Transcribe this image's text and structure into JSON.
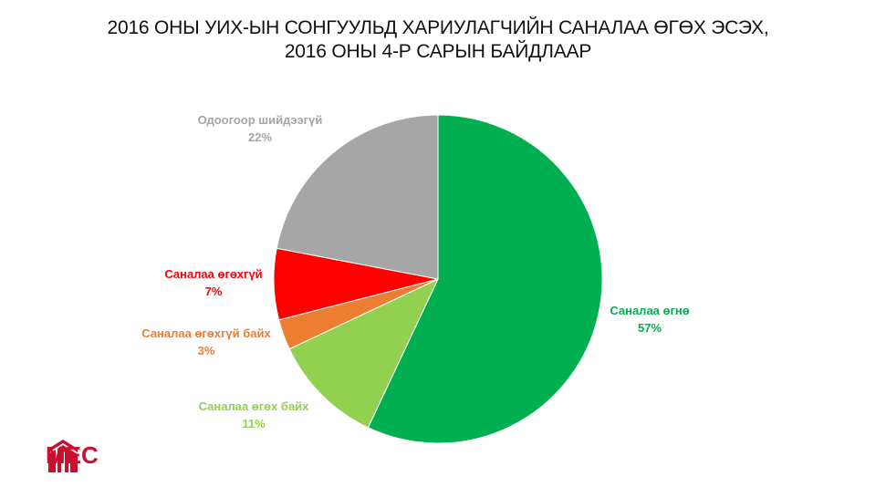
{
  "title_line1": "2016 ОНЫ УИХ-ЫН СОНГУУЛЬД ХАРИУЛАГЧИЙН САНАЛАА ӨГӨХ ЭСЭХ,",
  "title_line2": "2016 ОНЫ 4-Р САРЫН БАЙДЛААР",
  "logo_text": "MEC",
  "chart_data": {
    "type": "pie",
    "title": "2016 ОНЫ УИХ-ЫН СОНГУУЛЬД ХАРИУЛАГЧИЙН САНАЛАА ӨГӨХ ЭСЭХ, 2016 ОНЫ 4-Р САРЫН БАЙДЛААР",
    "start_angle_deg": 0,
    "direction": "clockwise",
    "slices": [
      {
        "label": "Саналаа өгнө",
        "value": 57,
        "display": "57%",
        "color": "#00b050"
      },
      {
        "label": "Саналаа өгөх байх",
        "value": 11,
        "display": "11%",
        "color": "#92d050"
      },
      {
        "label": "Саналаа өгөхгүй байх",
        "value": 3,
        "display": "3%",
        "color": "#ed7d31"
      },
      {
        "label": "Саналаа өгөхгүй",
        "value": 7,
        "display": "7%",
        "color": "#ff0000"
      },
      {
        "label": "Одоогоор шийдээгүй",
        "value": 22,
        "display": "22%",
        "color": "#a6a6a6"
      }
    ]
  }
}
